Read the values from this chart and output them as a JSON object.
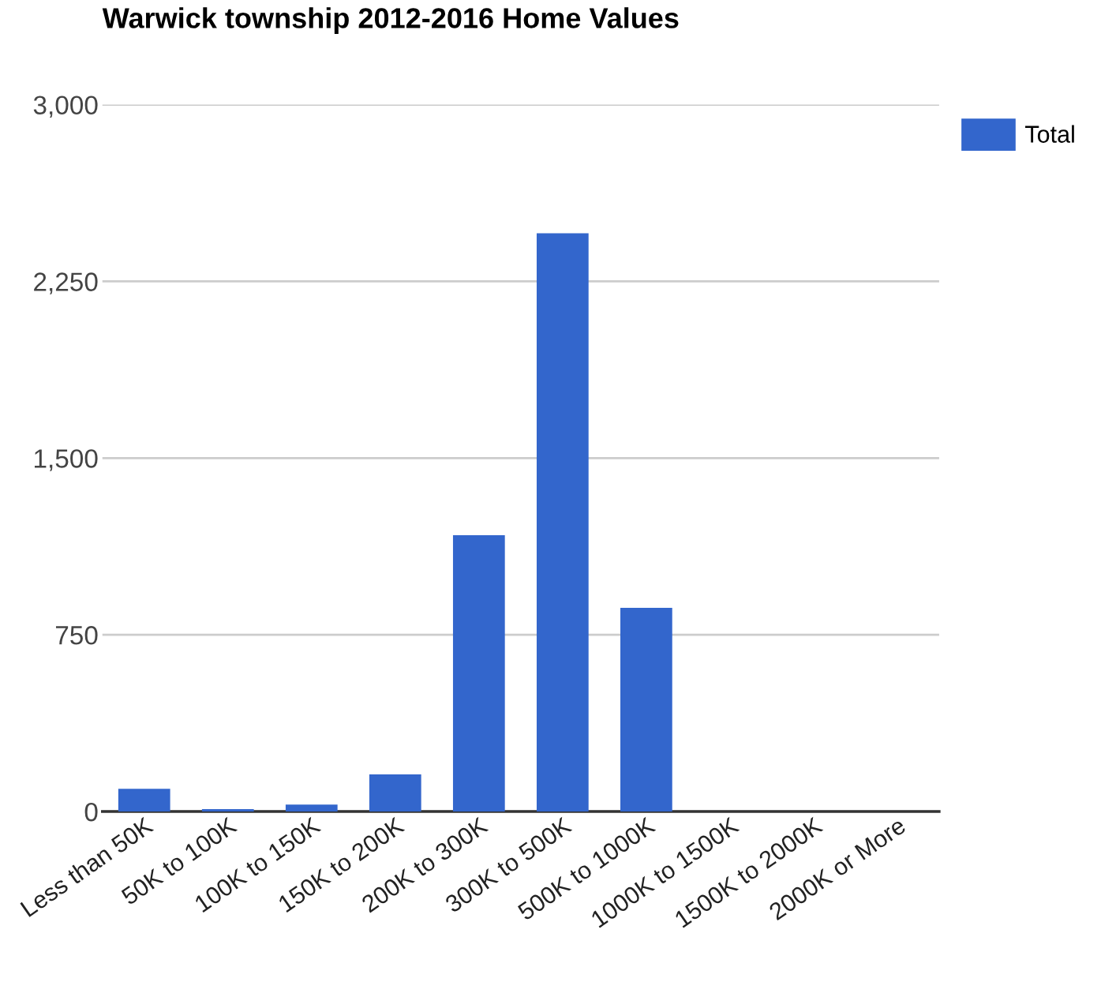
{
  "chart_data": {
    "type": "bar",
    "title": "Warwick township 2012-2016 Home Values",
    "categories": [
      "Less than 50K",
      "50K to 100K",
      "100K to 150K",
      "150K to 200K",
      "200K to 300K",
      "300K to 500K",
      "500K to 1000K",
      "1000K to 1500K",
      "1500K to 2000K",
      "2000K or More"
    ],
    "series": [
      {
        "name": "Total",
        "color": "#3366cc",
        "values": [
          97,
          10,
          30,
          158,
          1173,
          2454,
          865,
          0,
          0,
          0
        ]
      }
    ],
    "ylim": [
      0,
      3000
    ],
    "yticks": [
      0,
      {
        "value": 750,
        "label": "750"
      },
      {
        "value": 1500,
        "label": "1,500"
      },
      {
        "value": 2250,
        "label": "2,250"
      },
      {
        "value": 3000,
        "label": "3,000"
      }
    ],
    "grid": "y",
    "legend": "top right"
  }
}
